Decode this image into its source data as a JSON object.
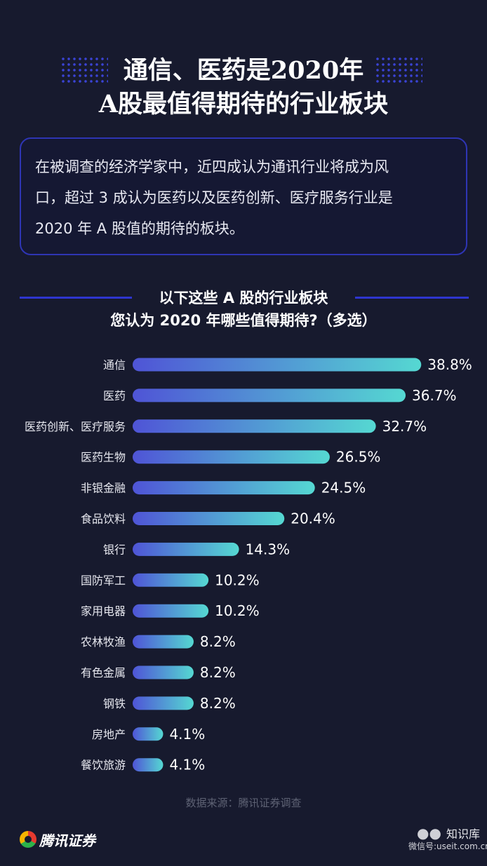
{
  "header": {
    "title_line1": "通信、医药是2020年",
    "title_line2": "A股最值得期待的行业板块"
  },
  "summary": {
    "text": "在被调查的经济学家中，近四成认为通讯行业将成为风\n口，超过 3 成认为医药以及医药创新、医疗服务行业是\n2020 年 A 股值的期待的板块。"
  },
  "question": {
    "line1": "以下这些 A 股的行业板块",
    "line2": "您认为 2020 年哪些值得期待?（多选）"
  },
  "chart_data": {
    "type": "bar",
    "orientation": "horizontal",
    "categories": [
      "通信",
      "医药",
      "医药创新、医疗服务",
      "医药生物",
      "非银金融",
      "食品饮料",
      "银行",
      "国防军工",
      "家用电器",
      "农林牧渔",
      "有色金属",
      "钢铁",
      "房地产",
      "餐饮旅游"
    ],
    "values": [
      38.8,
      36.7,
      32.7,
      26.5,
      24.5,
      20.4,
      14.3,
      10.2,
      10.2,
      8.2,
      8.2,
      8.2,
      4.1,
      4.1
    ],
    "value_labels": [
      "38.8%",
      "36.7%",
      "32.7%",
      "26.5%",
      "24.5%",
      "20.4%",
      "14.3%",
      "10.2%",
      "10.2%",
      "8.2%",
      "8.2%",
      "8.2%",
      "4.1%",
      "4.1%"
    ],
    "grid": false,
    "colors": {
      "bar_start": "#4f54d6",
      "bar_end": "#55d8d2"
    }
  },
  "source": "数据来源：腾讯证券调查",
  "branding": {
    "logo_text": "腾讯证券",
    "logo_icon": "tencent-logo-icon"
  },
  "watermark": {
    "icon": "wechat-icon",
    "name": "知识库",
    "id": "微信号:useit.com.cn"
  }
}
